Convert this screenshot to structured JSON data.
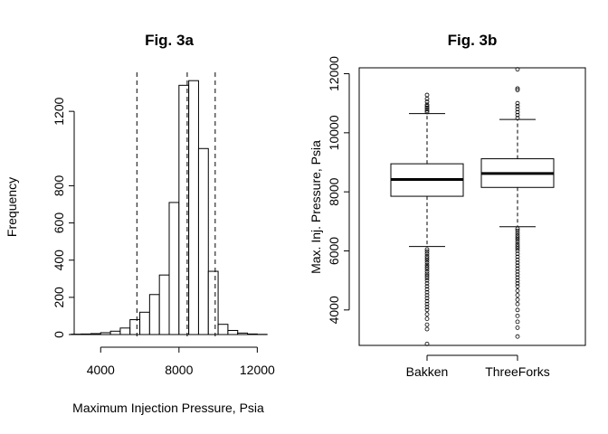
{
  "chart_data": [
    {
      "type": "histogram",
      "title": "Fig. 3a",
      "xlabel": "Maximum Injection Pressure, Psia",
      "ylabel": "Frequency",
      "xlim": [
        2000,
        13000
      ],
      "ylim": [
        0,
        1400
      ],
      "x_ticks": [
        4000,
        8000,
        12000
      ],
      "x_tick_labels": [
        "4000",
        "8000",
        "12000"
      ],
      "y_ticks": [
        0,
        200,
        400,
        600,
        800,
        1200
      ],
      "y_tick_labels": [
        "0",
        "200",
        "400",
        "600",
        "800",
        "1200"
      ],
      "bin_edges": [
        2500,
        3000,
        3500,
        4000,
        4500,
        5000,
        5500,
        6000,
        6500,
        7000,
        7500,
        8000,
        8500,
        9000,
        9500,
        10000,
        10500,
        11000,
        11500,
        12000,
        12500
      ],
      "counts": [
        2,
        3,
        5,
        10,
        18,
        35,
        80,
        120,
        215,
        320,
        710,
        1340,
        1365,
        1000,
        340,
        55,
        22,
        8,
        3,
        1
      ],
      "vlines": [
        5850,
        8420,
        9850
      ],
      "vline_style": "dashed",
      "grid": false
    },
    {
      "type": "boxplot",
      "title": "Fig. 3b",
      "ylabel": "Max. Inj. Pressure, Psia",
      "ylim": [
        2800,
        12200
      ],
      "y_ticks": [
        4000,
        6000,
        8000,
        10000,
        12000
      ],
      "y_tick_labels": [
        "4000",
        "6000",
        "8000",
        "10000",
        "12000"
      ],
      "categories": [
        "Bakken",
        "ThreeForks"
      ],
      "boxes": [
        {
          "name": "Bakken",
          "whisker_low": 6150,
          "q1": 7850,
          "median": 8420,
          "q3": 8950,
          "whisker_high": 10650,
          "outliers_high": [
            10700,
            10750,
            10800,
            10850,
            10900,
            10950,
            11050,
            11150,
            11280
          ],
          "outliers_low": [
            6050,
            5980,
            5900,
            5820,
            5750,
            5680,
            5600,
            5520,
            5450,
            5380,
            5300,
            5220,
            5150,
            5080,
            5000,
            4900,
            4800,
            4700,
            4600,
            4500,
            4400,
            4300,
            4200,
            4100,
            4000,
            3850,
            3700,
            3500,
            3350,
            2850
          ]
        },
        {
          "name": "ThreeForks",
          "whisker_low": 6820,
          "q1": 8150,
          "median": 8620,
          "q3": 9120,
          "whisker_high": 10450,
          "outliers_high": [
            10500,
            10600,
            10700,
            10800,
            10900,
            11000,
            11450,
            11500,
            12150
          ],
          "outliers_low": [
            6750,
            6680,
            6600,
            6520,
            6450,
            6380,
            6300,
            6220,
            6150,
            6080,
            6000,
            5900,
            5800,
            5700,
            5600,
            5500,
            5400,
            5300,
            5200,
            5100,
            5000,
            4900,
            4800,
            4650,
            4500,
            4350,
            4200,
            4000,
            3800,
            3600,
            3400,
            3100
          ]
        }
      ],
      "grid": false
    }
  ]
}
